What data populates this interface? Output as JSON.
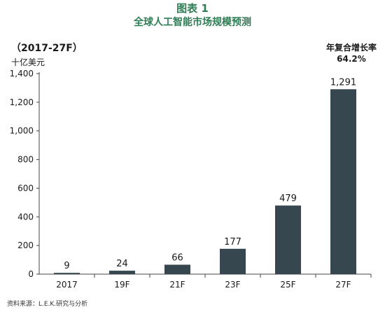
{
  "header": {
    "title": "图表 1",
    "subtitle": "全球人工智能市场规模预测"
  },
  "period_label": "（2017-27F）",
  "unit_label": "十亿美元",
  "cagr": {
    "label": "年复合增长率",
    "value": "64.2%"
  },
  "source": "资料来源：L.E.K.研究与分析",
  "colors": {
    "bar": "#37474f",
    "title": "#2e7d55",
    "axis": "#444444"
  },
  "chart_data": {
    "type": "bar",
    "categories": [
      "2017",
      "19F",
      "21F",
      "23F",
      "25F",
      "27F"
    ],
    "values": [
      9,
      24,
      66,
      177,
      479,
      1291
    ],
    "value_labels": [
      "9",
      "24",
      "66",
      "177",
      "479",
      "1,291"
    ],
    "title": "全球人工智能市场规模预测",
    "xlabel": "",
    "ylabel": "十亿美元",
    "ylim": [
      0,
      1400
    ],
    "yticks": [
      0,
      200,
      400,
      600,
      800,
      1000,
      1200,
      1400
    ],
    "ytick_labels": [
      "0",
      "200",
      "400",
      "600",
      "800",
      "1,000",
      "1,200",
      "1,400"
    ],
    "grid": false,
    "legend": "none"
  }
}
